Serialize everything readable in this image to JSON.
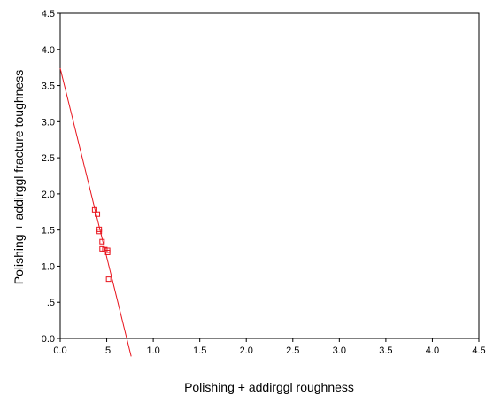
{
  "chart_data": {
    "type": "scatter",
    "xlabel": "Polishing + addirggl roughness",
    "ylabel": "Polishing + addirggl fracture toughness",
    "xlim": [
      0,
      4.5
    ],
    "ylim": [
      0,
      4.5
    ],
    "x_ticks": [
      0.0,
      0.5,
      1.0,
      1.5,
      2.0,
      2.5,
      3.0,
      3.5,
      4.0,
      4.5
    ],
    "x_tick_labels": [
      "0.0",
      ".5",
      "1.0",
      "1.5",
      "2.0",
      "2.5",
      "3.0",
      "3.5",
      "4.0",
      "4.5"
    ],
    "y_ticks": [
      0.0,
      0.5,
      1.0,
      1.5,
      2.0,
      2.5,
      3.0,
      3.5,
      4.0,
      4.5
    ],
    "y_tick_labels": [
      "0.0",
      ".5",
      "1.0",
      "1.5",
      "2.0",
      "2.5",
      "3.0",
      "3.5",
      "4.0",
      "4.5"
    ],
    "grid": false,
    "color": "#e8141d",
    "points": [
      {
        "x": 0.37,
        "y": 1.78
      },
      {
        "x": 0.4,
        "y": 1.72
      },
      {
        "x": 0.42,
        "y": 1.51
      },
      {
        "x": 0.42,
        "y": 1.48
      },
      {
        "x": 0.45,
        "y": 1.34
      },
      {
        "x": 0.45,
        "y": 1.24
      },
      {
        "x": 0.48,
        "y": 1.23
      },
      {
        "x": 0.51,
        "y": 1.22
      },
      {
        "x": 0.51,
        "y": 1.19
      },
      {
        "x": 0.52,
        "y": 0.82
      }
    ],
    "fit_line": {
      "intercept": 3.74,
      "slope": -5.23
    }
  }
}
